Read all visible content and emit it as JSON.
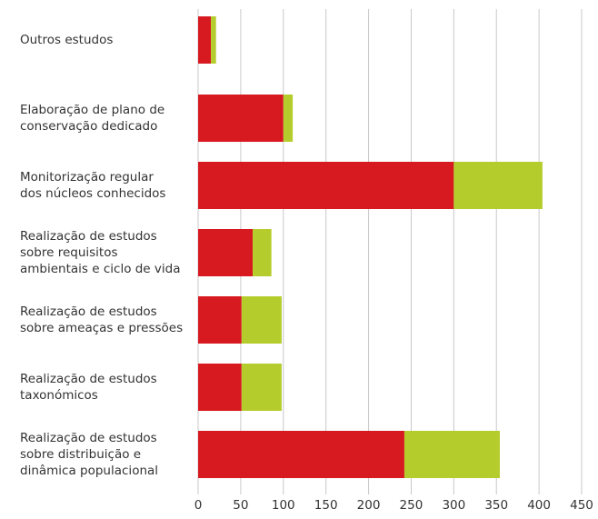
{
  "chart_data": {
    "type": "stacked-barh",
    "categories": [
      [
        "Outros estudos"
      ],
      [
        "Elaboração de plano de",
        "conservação dedicado"
      ],
      [
        "Monitorização regular",
        "dos núcleos conhecidos"
      ],
      [
        "Realização de estudos",
        "sobre requisitos",
        "ambientais e ciclo de vida"
      ],
      [
        "Realização de estudos",
        "sobre ameaças e pressões"
      ],
      [
        "Realização de estudos",
        "taxonómicos"
      ],
      [
        "Realização de estudos",
        "sobre distribuição e",
        "dinâmica populacional"
      ]
    ],
    "series": [
      {
        "color": "#d71920",
        "values": [
          15,
          100,
          300,
          64,
          51,
          51,
          242
        ]
      },
      {
        "color": "#b5cd2c",
        "values": [
          6,
          11,
          104,
          22,
          47,
          47,
          112
        ]
      }
    ],
    "xlim": [
      0,
      450
    ],
    "xticks": [
      0,
      50,
      100,
      150,
      200,
      250,
      300,
      350,
      400,
      450
    ],
    "grid": true
  }
}
